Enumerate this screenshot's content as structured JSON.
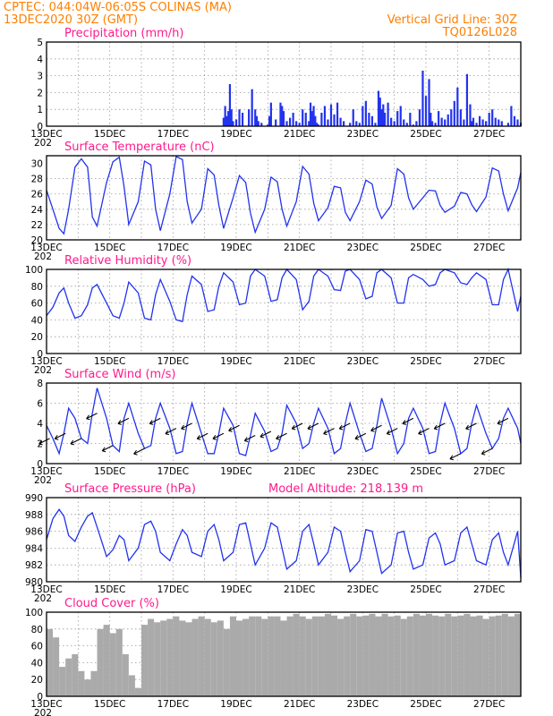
{
  "header": {
    "line1": "CPTEC:  044:04W-06:05S  COLINAS (MA)",
    "line2": "13DEC2020 30Z (GMT)",
    "grid_note": "Vertical Grid Line: 30Z",
    "code": "TQ0126L028"
  },
  "x_ticks": [
    "13DEC",
    "15DEC",
    "17DEC",
    "19DEC",
    "21DEC",
    "23DEC",
    "25DEC",
    "27DEC"
  ],
  "x_start_label": "202",
  "colors": {
    "series": "#2233ee",
    "cloud": "#aaaaaa",
    "title": "#ff1a8c",
    "header": "#ff7f00"
  },
  "chart_data": [
    {
      "type": "bar",
      "title": "Precipitation (mm/h)",
      "ylim": [
        0,
        5
      ],
      "yticks": [
        "0",
        "1",
        "2",
        "3",
        "4",
        "5"
      ],
      "x_days": [
        5.6,
        5.65,
        5.7,
        5.75,
        5.8,
        5.85,
        5.9,
        6.0,
        6.1,
        6.2,
        6.4,
        6.5,
        6.6,
        6.65,
        6.7,
        6.8,
        7.0,
        7.05,
        7.1,
        7.25,
        7.4,
        7.45,
        7.5,
        7.6,
        7.7,
        7.8,
        7.9,
        8.0,
        8.1,
        8.2,
        8.3,
        8.35,
        8.4,
        8.45,
        8.5,
        8.55,
        8.6,
        8.7,
        8.8,
        8.9,
        9.0,
        9.1,
        9.2,
        9.3,
        9.4,
        9.6,
        9.7,
        9.8,
        9.9,
        10.0,
        10.1,
        10.2,
        10.3,
        10.4,
        10.5,
        10.55,
        10.6,
        10.65,
        10.7,
        10.8,
        10.9,
        11.0,
        11.1,
        11.2,
        11.3,
        11.4,
        11.5,
        11.6,
        11.7,
        11.8,
        11.9,
        12.0,
        12.1,
        12.15,
        12.2,
        12.3,
        12.4,
        12.5,
        12.6,
        12.7,
        12.8,
        12.9,
        13.0,
        13.1,
        13.2,
        13.3,
        13.4,
        13.45,
        13.5,
        13.6,
        13.7,
        13.8,
        13.9,
        14.0,
        14.1,
        14.2,
        14.3,
        14.4,
        14.6,
        14.7,
        14.8,
        14.9,
        15.0
      ],
      "values": [
        0.5,
        1.2,
        0.6,
        0.9,
        2.5,
        1.0,
        0.3,
        0.4,
        1.0,
        0.8,
        1.0,
        2.2,
        1.0,
        0.6,
        0.3,
        0.2,
        0.1,
        0.6,
        1.4,
        0.4,
        1.4,
        1.2,
        0.9,
        0.3,
        0.5,
        0.8,
        0.3,
        0.2,
        1.0,
        0.8,
        0.3,
        1.4,
        0.9,
        1.2,
        0.6,
        0.2,
        0.1,
        0.8,
        1.2,
        0.4,
        1.3,
        0.7,
        1.4,
        0.5,
        0.3,
        0.2,
        1.0,
        0.3,
        0.2,
        1.2,
        1.5,
        0.8,
        0.6,
        0.2,
        2.1,
        1.7,
        1.0,
        1.3,
        0.8,
        1.4,
        0.5,
        0.3,
        0.9,
        1.2,
        0.4,
        0.2,
        0.8,
        0.1,
        0.3,
        1.0,
        3.3,
        1.8,
        2.8,
        0.8,
        0.3,
        0.2,
        0.9,
        0.5,
        0.4,
        0.7,
        1.0,
        1.5,
        2.3,
        1.0,
        0.4,
        3.1,
        1.3,
        0.3,
        0.5,
        0.2,
        0.6,
        0.4,
        0.3,
        0.8,
        1.0,
        0.5,
        0.4,
        0.3,
        0.2,
        1.2,
        0.6,
        0.4,
        0.2
      ]
    },
    {
      "type": "line",
      "title": "Surface Temperature (nC)",
      "ylim": [
        20,
        31
      ],
      "yticks": [
        "20",
        "22",
        "24",
        "26",
        "28",
        "30"
      ],
      "x_days": [
        0.0,
        0.2,
        0.4,
        0.55,
        0.7,
        0.9,
        1.1,
        1.3,
        1.45,
        1.6,
        1.9,
        2.1,
        2.3,
        2.45,
        2.6,
        2.9,
        3.1,
        3.3,
        3.45,
        3.6,
        3.9,
        4.1,
        4.3,
        4.45,
        4.6,
        4.9,
        5.1,
        5.3,
        5.45,
        5.6,
        5.9,
        6.1,
        6.3,
        6.45,
        6.6,
        6.9,
        7.1,
        7.3,
        7.45,
        7.6,
        7.9,
        8.1,
        8.3,
        8.45,
        8.6,
        8.9,
        9.1,
        9.3,
        9.45,
        9.6,
        9.9,
        10.1,
        10.3,
        10.45,
        10.6,
        10.9,
        11.1,
        11.3,
        11.45,
        11.6,
        11.9,
        12.1,
        12.3,
        12.45,
        12.6,
        12.9,
        13.1,
        13.3,
        13.45,
        13.6,
        13.9,
        14.1,
        14.3,
        14.45,
        14.6,
        14.9,
        15.0
      ],
      "values": [
        26.5,
        24.0,
        21.5,
        20.8,
        24.0,
        29.5,
        30.6,
        29.5,
        23.0,
        21.8,
        27.5,
        30.2,
        30.8,
        27.0,
        22.0,
        25.0,
        30.3,
        29.8,
        24.0,
        21.2,
        26.0,
        30.9,
        30.5,
        25.0,
        22.2,
        24.0,
        29.3,
        28.5,
        24.5,
        21.5,
        25.5,
        28.4,
        27.5,
        23.5,
        21.0,
        24.0,
        28.2,
        27.6,
        24.0,
        21.8,
        25.0,
        29.6,
        28.6,
        24.8,
        22.5,
        24.2,
        27.0,
        26.8,
        23.6,
        22.5,
        25.0,
        27.8,
        27.3,
        24.3,
        22.8,
        24.5,
        29.3,
        28.6,
        25.5,
        24.0,
        25.5,
        26.5,
        26.4,
        24.5,
        23.6,
        24.4,
        26.2,
        26.0,
        24.6,
        23.7,
        25.6,
        29.4,
        29.0,
        26.0,
        23.8,
        26.8,
        28.8
      ]
    },
    {
      "type": "line",
      "title": "Relative Humidity (%)",
      "ylim": [
        0,
        100
      ],
      "yticks": [
        "0",
        "20",
        "40",
        "60",
        "80",
        "100"
      ],
      "x_days": [
        0.0,
        0.2,
        0.4,
        0.55,
        0.7,
        0.9,
        1.1,
        1.3,
        1.45,
        1.6,
        1.9,
        2.1,
        2.3,
        2.45,
        2.6,
        2.9,
        3.1,
        3.3,
        3.45,
        3.6,
        3.9,
        4.1,
        4.3,
        4.45,
        4.6,
        4.9,
        5.1,
        5.3,
        5.45,
        5.6,
        5.9,
        6.1,
        6.3,
        6.45,
        6.6,
        6.9,
        7.1,
        7.3,
        7.45,
        7.6,
        7.9,
        8.1,
        8.3,
        8.45,
        8.6,
        8.9,
        9.1,
        9.3,
        9.45,
        9.6,
        9.9,
        10.1,
        10.3,
        10.45,
        10.6,
        10.9,
        11.1,
        11.3,
        11.45,
        11.6,
        11.9,
        12.1,
        12.3,
        12.45,
        12.6,
        12.9,
        13.1,
        13.3,
        13.45,
        13.6,
        13.9,
        14.1,
        14.3,
        14.45,
        14.6,
        14.9,
        15.0
      ],
      "values": [
        45.0,
        55.0,
        72.0,
        78.0,
        60.0,
        42.0,
        45.0,
        58.0,
        78.0,
        82.0,
        60.0,
        45.0,
        42.0,
        60.0,
        85.0,
        72.0,
        42.0,
        40.0,
        70.0,
        88.0,
        62.0,
        40.0,
        38.0,
        70.0,
        92.0,
        82.0,
        50.0,
        52.0,
        80.0,
        96.0,
        85.0,
        58.0,
        60.0,
        92.0,
        100.0,
        92.0,
        62.0,
        64.0,
        90.0,
        100.0,
        88.0,
        52.0,
        62.0,
        92.0,
        100.0,
        92.0,
        76.0,
        75.0,
        98.0,
        100.0,
        88.0,
        65.0,
        68.0,
        96.0,
        100.0,
        90.0,
        60.0,
        60.0,
        90.0,
        94.0,
        88.0,
        80.0,
        82.0,
        96.0,
        100.0,
        96.0,
        84.0,
        82.0,
        90.0,
        96.0,
        88.0,
        58.0,
        58.0,
        88.0,
        100.0,
        50.0,
        68.0
      ]
    },
    {
      "type": "line",
      "title": "Surface Wind (m/s)",
      "ylim": [
        0,
        8
      ],
      "yticks": [
        "0",
        "2",
        "4",
        "6",
        "8"
      ],
      "x_days": [
        0.0,
        0.2,
        0.4,
        0.55,
        0.7,
        0.9,
        1.1,
        1.3,
        1.45,
        1.6,
        1.9,
        2.1,
        2.3,
        2.45,
        2.6,
        2.9,
        3.1,
        3.3,
        3.45,
        3.6,
        3.9,
        4.1,
        4.3,
        4.45,
        4.6,
        4.9,
        5.1,
        5.3,
        5.45,
        5.6,
        5.9,
        6.1,
        6.3,
        6.45,
        6.6,
        6.9,
        7.1,
        7.3,
        7.45,
        7.6,
        7.9,
        8.1,
        8.3,
        8.45,
        8.6,
        8.9,
        9.1,
        9.3,
        9.45,
        9.6,
        9.9,
        10.1,
        10.3,
        10.45,
        10.6,
        10.9,
        11.1,
        11.3,
        11.45,
        11.6,
        11.9,
        12.1,
        12.3,
        12.45,
        12.6,
        12.9,
        13.1,
        13.3,
        13.45,
        13.6,
        13.9,
        14.1,
        14.3,
        14.45,
        14.6,
        14.9,
        15.0
      ],
      "values": [
        3.8,
        2.5,
        1.0,
        3.0,
        5.5,
        4.5,
        2.5,
        2.0,
        5.0,
        7.5,
        4.5,
        1.8,
        1.2,
        4.5,
        6.0,
        3.0,
        1.5,
        1.8,
        4.5,
        6.0,
        3.5,
        1.0,
        1.2,
        4.0,
        6.0,
        3.0,
        1.0,
        1.0,
        3.0,
        5.5,
        3.8,
        1.0,
        0.8,
        2.8,
        5.0,
        3.2,
        1.2,
        1.5,
        3.0,
        5.8,
        4.0,
        1.5,
        2.0,
        4.0,
        5.5,
        3.5,
        1.0,
        1.5,
        4.0,
        6.0,
        3.0,
        1.2,
        1.5,
        3.8,
        6.5,
        3.5,
        1.0,
        2.0,
        4.5,
        5.5,
        3.5,
        1.0,
        1.2,
        4.0,
        6.0,
        3.5,
        1.0,
        1.5,
        4.0,
        5.8,
        3.0,
        1.5,
        2.5,
        4.5,
        5.5,
        3.5,
        2.0
      ]
    },
    {
      "type": "line",
      "title": "Surface Pressure (hPa)",
      "subtitle": "Model Altitude: 218.139 m",
      "ylim": [
        980,
        990
      ],
      "yticks": [
        "980",
        "982",
        "984",
        "986",
        "988",
        "990"
      ],
      "x_days": [
        0.0,
        0.2,
        0.4,
        0.55,
        0.7,
        0.9,
        1.1,
        1.3,
        1.45,
        1.6,
        1.9,
        2.1,
        2.3,
        2.45,
        2.6,
        2.9,
        3.1,
        3.3,
        3.45,
        3.6,
        3.9,
        4.1,
        4.3,
        4.45,
        4.6,
        4.9,
        5.1,
        5.3,
        5.45,
        5.6,
        5.9,
        6.1,
        6.3,
        6.45,
        6.6,
        6.9,
        7.1,
        7.3,
        7.45,
        7.6,
        7.9,
        8.1,
        8.3,
        8.45,
        8.6,
        8.9,
        9.1,
        9.3,
        9.45,
        9.6,
        9.9,
        10.1,
        10.3,
        10.45,
        10.6,
        10.9,
        11.1,
        11.3,
        11.45,
        11.6,
        11.9,
        12.1,
        12.3,
        12.45,
        12.6,
        12.9,
        13.1,
        13.3,
        13.45,
        13.6,
        13.9,
        14.1,
        14.3,
        14.45,
        14.6,
        14.9,
        15.0
      ],
      "values": [
        985.0,
        987.5,
        988.6,
        987.8,
        985.5,
        984.8,
        986.5,
        987.8,
        988.2,
        986.5,
        983.0,
        983.8,
        985.5,
        985.0,
        982.5,
        984.0,
        986.8,
        987.2,
        986.0,
        983.5,
        982.5,
        984.5,
        986.2,
        985.5,
        983.5,
        983.0,
        986.0,
        986.8,
        985.0,
        982.5,
        983.5,
        986.8,
        987.0,
        984.5,
        982.0,
        984.0,
        987.0,
        986.5,
        984.0,
        981.5,
        982.5,
        986.0,
        986.8,
        984.5,
        982.0,
        983.5,
        986.5,
        986.0,
        983.5,
        981.2,
        982.5,
        986.2,
        986.0,
        983.5,
        981.0,
        982.0,
        985.8,
        986.0,
        983.5,
        981.5,
        982.0,
        985.2,
        985.8,
        984.5,
        982.0,
        982.5,
        985.8,
        986.5,
        984.5,
        982.5,
        982.0,
        985.0,
        985.8,
        983.5,
        982.0,
        986.0,
        980.5
      ]
    },
    {
      "type": "bar",
      "title": "Cloud Cover (%)",
      "ylim": [
        0,
        100
      ],
      "yticks": [
        "0",
        "20",
        "40",
        "60",
        "80",
        "100"
      ],
      "x_days": [
        0.0,
        0.2,
        0.4,
        0.6,
        0.8,
        1.0,
        1.2,
        1.4,
        1.6,
        1.8,
        2.0,
        2.2,
        2.4,
        2.6,
        2.8,
        3.0,
        3.2,
        3.4,
        3.6,
        3.8,
        4.0,
        4.2,
        4.4,
        4.6,
        4.8,
        5.0,
        5.2,
        5.4,
        5.6,
        5.8,
        6.0,
        6.2,
        6.4,
        6.6,
        6.8,
        7.0,
        7.2,
        7.4,
        7.6,
        7.8,
        8.0,
        8.2,
        8.4,
        8.6,
        8.8,
        9.0,
        9.2,
        9.4,
        9.6,
        9.8,
        10.0,
        10.2,
        10.4,
        10.6,
        10.8,
        11.0,
        11.2,
        11.4,
        11.6,
        11.8,
        12.0,
        12.2,
        12.4,
        12.6,
        12.8,
        13.0,
        13.2,
        13.4,
        13.6,
        13.8,
        14.0,
        14.2,
        14.4,
        14.6,
        14.8,
        15.0
      ],
      "values": [
        80,
        70,
        35,
        45,
        50,
        30,
        20,
        30,
        80,
        85,
        75,
        80,
        50,
        25,
        10,
        85,
        92,
        88,
        90,
        92,
        95,
        90,
        88,
        92,
        95,
        92,
        88,
        90,
        80,
        95,
        90,
        92,
        95,
        95,
        92,
        95,
        95,
        90,
        95,
        98,
        95,
        92,
        95,
        95,
        98,
        96,
        92,
        95,
        98,
        95,
        96,
        98,
        95,
        98,
        95,
        96,
        92,
        95,
        98,
        96,
        98,
        96,
        95,
        98,
        95,
        96,
        98,
        95,
        96,
        92,
        95,
        96,
        98,
        95,
        98,
        96
      ]
    }
  ]
}
